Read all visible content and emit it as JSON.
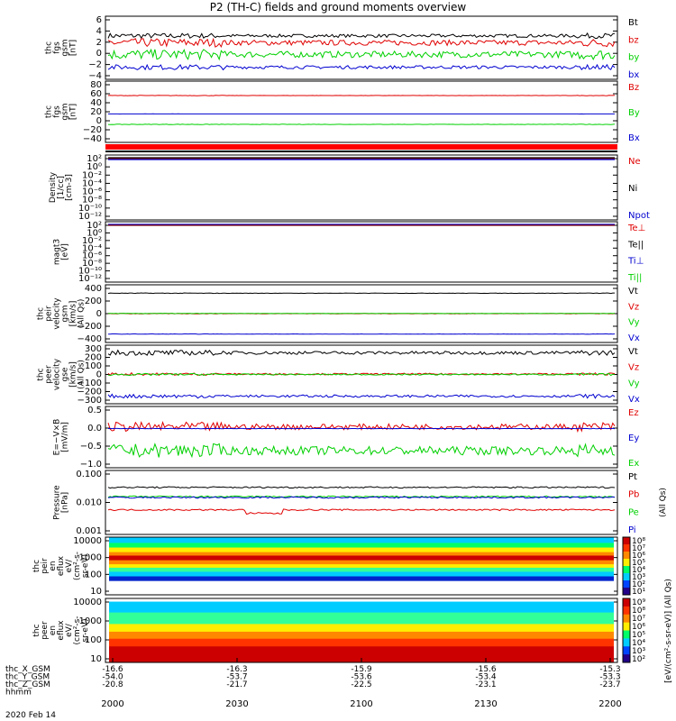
{
  "title": "P2 (TH-C) fields and ground moments overview",
  "colors": {
    "black": "#000000",
    "red": "#e00000",
    "green": "#00d000",
    "blue": "#0000d0",
    "darkred": "#800000"
  },
  "time_axis": {
    "ticks": [
      "2000",
      "2030",
      "2100",
      "2130",
      "2200"
    ],
    "date": "2020 Feb 14",
    "rows": [
      {
        "label": "thc_X_GSM",
        "values": [
          "-16.6",
          "-16.3",
          "-15.9",
          "-15.6",
          "-15.3"
        ]
      },
      {
        "label": "thc_Y_GSM",
        "values": [
          "-54.0",
          "-53.7",
          "-53.6",
          "-53.4",
          "-53.3"
        ]
      },
      {
        "label": "thc_Z_GSM",
        "values": [
          "-20.8",
          "-21.7",
          "-22.5",
          "-23.1",
          "-23.7"
        ]
      },
      {
        "label": "hhmm",
        "values": []
      }
    ]
  },
  "chart_data": [
    {
      "type": "line",
      "id": "fgs_dsl",
      "ylabel": [
        "thc",
        "fgs",
        "gsm",
        "[nT]"
      ],
      "ylim": [
        -4,
        6.5
      ],
      "yticks": [
        "6",
        "4",
        "2",
        "0",
        "−2",
        "−4"
      ],
      "series": [
        {
          "name": "Bt",
          "color": "black",
          "level": 3.5,
          "noise": 0.3
        },
        {
          "name": "bz",
          "color": "red",
          "level": 2.2,
          "noise": 0.5
        },
        {
          "name": "by",
          "color": "green",
          "level": 0.0,
          "noise": 0.6
        },
        {
          "name": "bx",
          "color": "blue",
          "level": -2.4,
          "noise": 0.3
        }
      ]
    },
    {
      "type": "line",
      "id": "fgs_gsm",
      "ylabel": [
        "thc",
        "fgs",
        "gsm",
        "[nT]"
      ],
      "ylim": [
        -55,
        95
      ],
      "yticks": [
        "80",
        "60",
        "40",
        "20",
        "0",
        "−20",
        "−40"
      ],
      "series": [
        {
          "name": "Bz",
          "color": "red",
          "level": 65,
          "noise": 0.3
        },
        {
          "name": "By",
          "color": "green",
          "level": -15,
          "noise": 0.4
        },
        {
          "name": "Bx",
          "color": "blue",
          "level": 14,
          "noise": 0.1
        }
      ]
    },
    {
      "type": "line",
      "id": "density",
      "ylabel": [
        "Density",
        "[1/cc]",
        "[cm-3]"
      ],
      "yticks": [
        "10²",
        "10⁰",
        "10⁻²",
        "10⁻⁴",
        "10⁻⁶",
        "10⁻⁸",
        "10⁻¹⁰",
        "10⁻¹²"
      ],
      "series": [
        {
          "name": "Ne",
          "color": "red"
        },
        {
          "name": "Ni",
          "color": "black"
        },
        {
          "name": "Npot",
          "color": "blue"
        }
      ]
    },
    {
      "type": "line",
      "id": "temperature",
      "ylabel": [
        "magt3",
        "[eV]"
      ],
      "yticks": [
        "10²",
        "10⁰",
        "10⁻²",
        "10⁻⁴",
        "10⁻⁶",
        "10⁻⁸",
        "10⁻¹⁰",
        "10⁻¹²"
      ],
      "series": [
        {
          "name": "Te⊥",
          "color": "red"
        },
        {
          "name": "Te||",
          "color": "black"
        },
        {
          "name": "Ti⊥",
          "color": "blue"
        },
        {
          "name": "Ti||",
          "color": "green"
        }
      ]
    },
    {
      "type": "line",
      "id": "vel_gsm",
      "ylabel": [
        "thc",
        "peir",
        "velocity",
        "gsm",
        "[km/s]",
        "(All Qs)"
      ],
      "ylim": [
        -420,
        420
      ],
      "yticks": [
        "400",
        "200",
        "0",
        "−200",
        "−400"
      ],
      "series": [
        {
          "name": "Vt",
          "color": "black",
          "level": 340,
          "noise": 3
        },
        {
          "name": "Vz",
          "color": "red",
          "level": 0,
          "noise": 3
        },
        {
          "name": "Vy",
          "color": "green",
          "level": 3,
          "noise": 2
        },
        {
          "name": "Vx",
          "color": "blue",
          "level": -340,
          "noise": 2
        }
      ]
    },
    {
      "type": "line",
      "id": "vel_gse",
      "ylabel": [
        "thc",
        "peer",
        "velocity",
        "gse",
        "[km/s]",
        "(All Qs)"
      ],
      "ylim": [
        -320,
        320
      ],
      "yticks": [
        "300",
        "200",
        "100",
        "0",
        "−100",
        "−200",
        "−300"
      ],
      "series": [
        {
          "name": "Vt",
          "color": "black",
          "level": 270,
          "noise": 20
        },
        {
          "name": "Vz",
          "color": "red",
          "level": 5,
          "noise": 10
        },
        {
          "name": "Vy",
          "color": "green",
          "level": 0,
          "noise": 8
        },
        {
          "name": "Vx",
          "color": "blue",
          "level": -270,
          "noise": 15
        }
      ]
    },
    {
      "type": "line",
      "id": "efield",
      "ylabel": [
        "E=−V×B",
        "[mV/m]"
      ],
      "ylim": [
        -1.0,
        0.52
      ],
      "yticks": [
        "0.5",
        "0.0",
        "−0.5",
        "−1.0"
      ],
      "series": [
        {
          "name": "Ez",
          "color": "red",
          "level": 0.05,
          "noise": 0.08
        },
        {
          "name": "Ey",
          "color": "blue",
          "level": 0.0,
          "noise": 0.004
        },
        {
          "name": "Ex",
          "color": "green",
          "level": -0.62,
          "noise": 0.12
        }
      ]
    },
    {
      "type": "line",
      "id": "pressure",
      "ylabel": [
        "Pressure",
        "[nPa]"
      ],
      "yscale": "log",
      "ylim": [
        0.001,
        0.1
      ],
      "yticks": [
        "0.100",
        "0.010",
        "0.001"
      ],
      "series": [
        {
          "name": "Pt",
          "color": "black",
          "level": 0.034
        },
        {
          "name": "Pb",
          "color": "red",
          "level": 0.0055
        },
        {
          "name": "Pe",
          "color": "green",
          "level": 0.016
        },
        {
          "name": "Pi",
          "color": "blue",
          "level": 0.015
        }
      ],
      "annotation": "(All Qs)"
    },
    {
      "type": "heatmap",
      "id": "peir_spec",
      "ylabel": [
        "thc",
        "peir",
        "en",
        "eflux",
        "eV/",
        "(cm²-s-",
        "sr-eV)"
      ],
      "yscale": "log",
      "ylim": [
        5,
        20000
      ],
      "yticks": [
        "10000",
        "1000",
        "100",
        "10"
      ],
      "colorbar": {
        "label": "[eV/(cm²-s-sr-eV)] (All Qs)",
        "ticks": [
          "10⁸",
          "10⁷",
          "10⁶",
          "10⁵",
          "10⁴",
          "10³",
          "10²",
          "10¹"
        ]
      }
    },
    {
      "type": "heatmap",
      "id": "peer_spec",
      "ylabel": [
        "thc",
        "peer",
        "en",
        "eflux",
        "eV/",
        "(cm²-s-",
        "sr-eV)"
      ],
      "yscale": "log",
      "ylim": [
        5,
        20000
      ],
      "yticks": [
        "10000",
        "1000",
        "100",
        "10"
      ],
      "colorbar": {
        "label": "[eV/(cm²-s-sr-eV)] (All Qs)",
        "ticks": [
          "10⁹",
          "10⁸",
          "10⁷",
          "10⁶",
          "10⁵",
          "10⁴",
          "10³",
          "10²"
        ]
      }
    }
  ]
}
